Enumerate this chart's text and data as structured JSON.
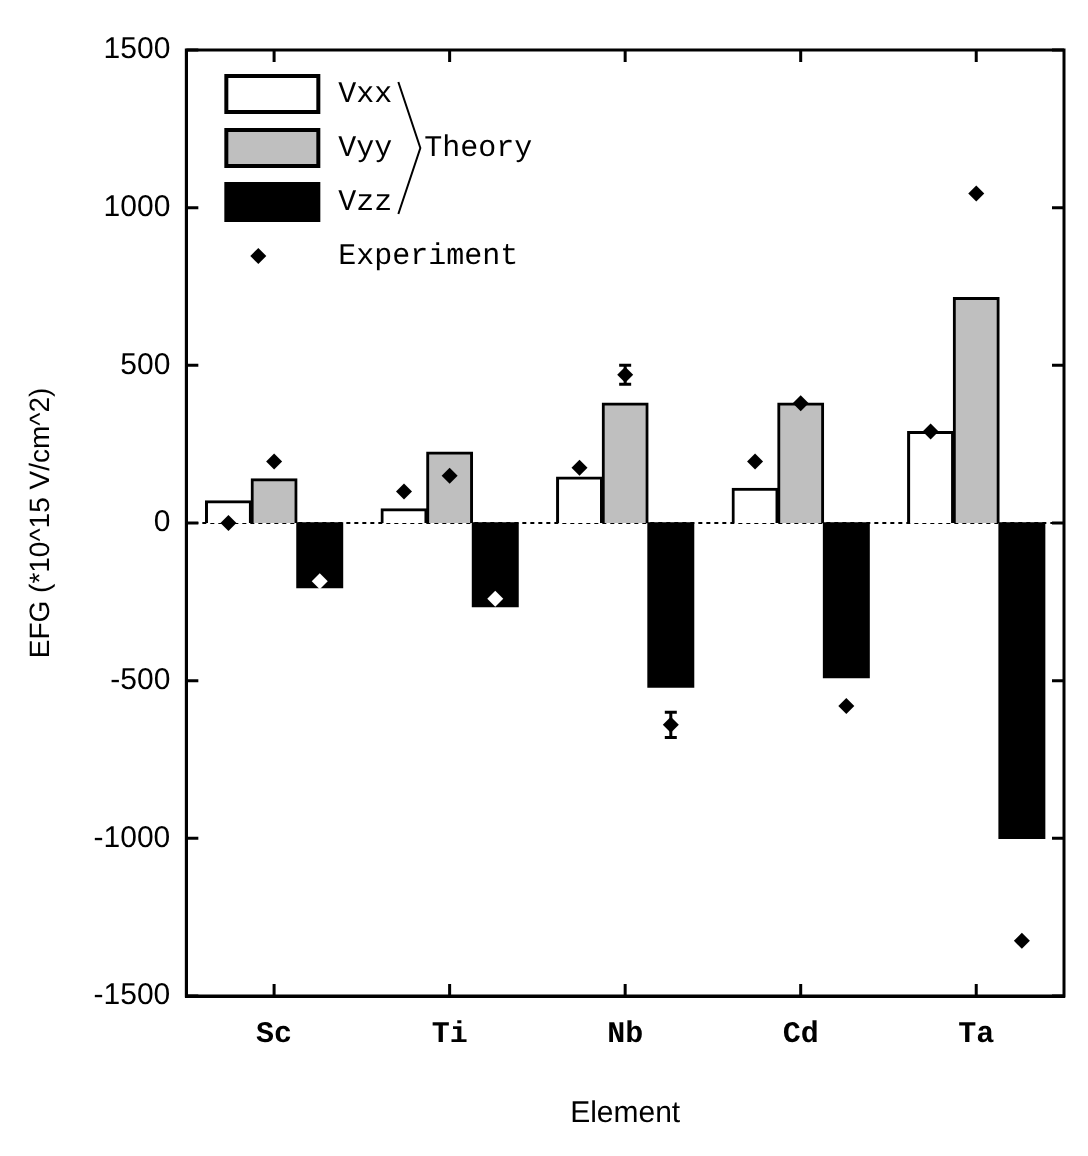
{
  "chart_data": {
    "type": "bar",
    "xlabel": "Element",
    "ylabel": "EFG (*10^15 V/cm^2)",
    "categories": [
      "Sc",
      "Ti",
      "Nb",
      "Cd",
      "Ta"
    ],
    "series": [
      {
        "name": "Vxx",
        "color": "#ffffff",
        "values": [
          70,
          45,
          145,
          110,
          290
        ]
      },
      {
        "name": "Vyy",
        "color": "#bfbfbf",
        "values": [
          140,
          225,
          380,
          380,
          715
        ]
      },
      {
        "name": "Vzz",
        "color": "#000000",
        "values": [
          -205,
          -265,
          -520,
          -490,
          -1000
        ]
      },
      {
        "name": "Experiment",
        "type": "scatter",
        "color": "#000000",
        "x": [
          "Sc",
          "Ti",
          "Nb",
          "Cd",
          "Ta"
        ],
        "values": [
          0,
          100,
          175,
          195,
          290
        ]
      },
      {
        "type": "scatter",
        "color": "#000000",
        "x": [
          "Sc",
          "Ti",
          "Nb",
          "Cd",
          "Ta"
        ],
        "values": [
          195,
          150,
          470,
          380,
          1045
        ],
        "errors": [
          null,
          null,
          30,
          null,
          null
        ]
      },
      {
        "type": "scatter",
        "x": [
          "Sc",
          "Ti",
          "Nb",
          "Cd",
          "Ta"
        ],
        "colors": [
          "#ffffff",
          "#ffffff",
          "#000000",
          "#000000",
          "#000000"
        ],
        "values": [
          -185,
          -240,
          -640,
          -580,
          -1325
        ],
        "errors": [
          null,
          null,
          40,
          null,
          null
        ]
      }
    ],
    "ylim": [
      -1500,
      1500
    ],
    "yticks": [
      -1500,
      -1000,
      -500,
      0,
      500,
      1000,
      1500
    ],
    "ref_lines": [
      {
        "axis": "y",
        "value": 0,
        "color": "#000000",
        "line_style": "dotted"
      }
    ],
    "annotations": [
      "Theory"
    ],
    "marker": "diamond",
    "legend": "top left",
    "grid": false
  }
}
